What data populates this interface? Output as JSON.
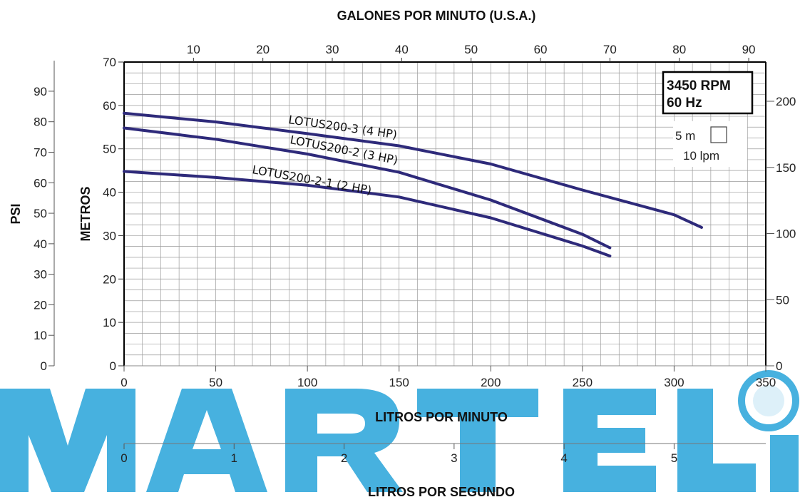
{
  "chart_data": {
    "type": "line",
    "title": "GALONES POR MINUTO (U.S.A.)",
    "xlabel": "LITROS POR MINUTO",
    "ylabel": "METROS",
    "x2label": "LITROS POR SEGUNDO",
    "y2label": "PSI",
    "xlim": [
      0,
      350
    ],
    "ylim": [
      0,
      70
    ],
    "grid": true,
    "x_ticks": [
      0,
      50,
      100,
      150,
      200,
      250,
      300,
      350
    ],
    "y_ticks": [
      0,
      10,
      20,
      30,
      40,
      50,
      60,
      70
    ],
    "gpm_ticks": [
      10,
      20,
      30,
      40,
      50,
      60,
      70,
      80,
      90
    ],
    "psi_ticks": [
      0,
      10,
      20,
      30,
      40,
      50,
      60,
      70,
      80,
      90
    ],
    "lps_ticks": [
      0,
      1,
      2,
      3,
      4,
      5
    ],
    "feet_ticks": [
      0,
      50,
      100,
      150,
      200
    ],
    "info_box": [
      "3450 RPM",
      "60 Hz"
    ],
    "scale_legend": {
      "height": "5 m",
      "flow": "10 lpm"
    },
    "line_color": "#2e2a7a",
    "watermark_color": "#27a3d9",
    "series": [
      {
        "name": "LOTUS200-3 (4 HP)",
        "x": [
          0,
          50,
          100,
          150,
          200,
          250,
          300,
          315
        ],
        "y": [
          58.2,
          56.2,
          53.5,
          50.7,
          46.5,
          40.5,
          34.8,
          31.9
        ]
      },
      {
        "name": "LOTUS200-2 (3 HP)",
        "x": [
          0,
          50,
          100,
          150,
          200,
          250,
          265
        ],
        "y": [
          54.8,
          52.2,
          48.8,
          44.6,
          38.2,
          30.3,
          27.2
        ]
      },
      {
        "name": "LOTUS200-2-1 (2 HP)",
        "x": [
          0,
          50,
          100,
          150,
          200,
          250,
          265
        ],
        "y": [
          44.8,
          43.4,
          41.6,
          38.9,
          34.1,
          27.6,
          25.3
        ]
      }
    ]
  }
}
